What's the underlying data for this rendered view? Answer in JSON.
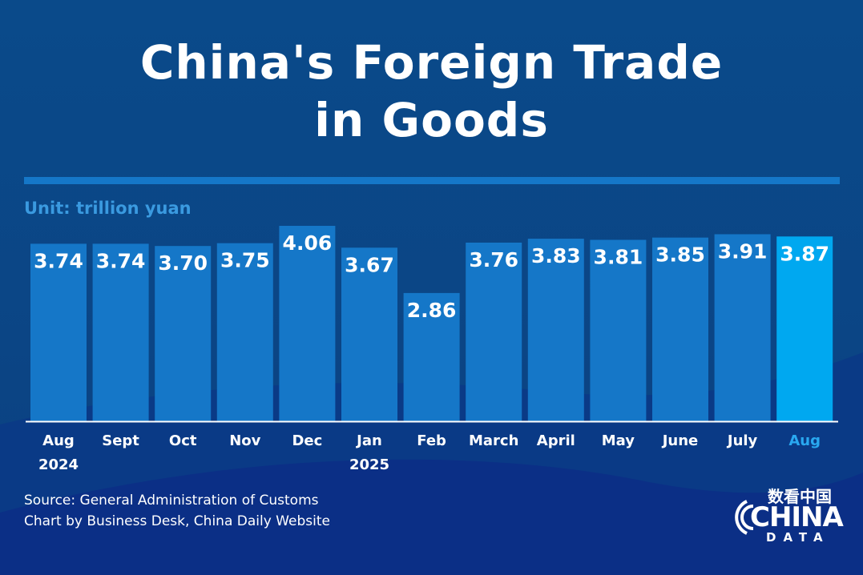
{
  "title_line1": "China's Foreign Trade",
  "title_line2": "in Goods",
  "unit_label": "Unit: trillion yuan",
  "source": "Source: General Administration of Customs",
  "credit": "Chart by Business Desk, China Daily Website",
  "logo": {
    "cn": "数看中国",
    "main": "CHINA",
    "sub": "DATA"
  },
  "colors": {
    "bar": "#1577c8",
    "highlight": "#00a8f0",
    "highlight_label": "#29a8f0",
    "background": "#0b4585"
  },
  "chart_data": {
    "type": "bar",
    "categories": [
      "Aug 2024",
      "Sept",
      "Oct",
      "Nov",
      "Dec",
      "Jan 2025",
      "Feb",
      "March",
      "April",
      "May",
      "June",
      "July",
      "Aug"
    ],
    "tick_labels": [
      [
        "Aug",
        "2024"
      ],
      [
        "Sept"
      ],
      [
        "Oct"
      ],
      [
        "Nov"
      ],
      [
        "Dec"
      ],
      [
        "Jan",
        "2025"
      ],
      [
        "Feb"
      ],
      [
        "March"
      ],
      [
        "April"
      ],
      [
        "May"
      ],
      [
        "June"
      ],
      [
        "July"
      ],
      [
        "Aug"
      ]
    ],
    "values": [
      3.74,
      3.74,
      3.7,
      3.75,
      4.06,
      3.67,
      2.86,
      3.76,
      3.83,
      3.81,
      3.85,
      3.91,
      3.87
    ],
    "value_labels": [
      "3.74",
      "3.74",
      "3.70",
      "3.75",
      "4.06",
      "3.67",
      "2.86",
      "3.76",
      "3.83",
      "3.81",
      "3.85",
      "3.91",
      "3.87"
    ],
    "highlight_index": 12,
    "ylim": [
      0.57,
      4.06
    ],
    "grid": false,
    "ylabel": "Unit: trillion yuan"
  }
}
